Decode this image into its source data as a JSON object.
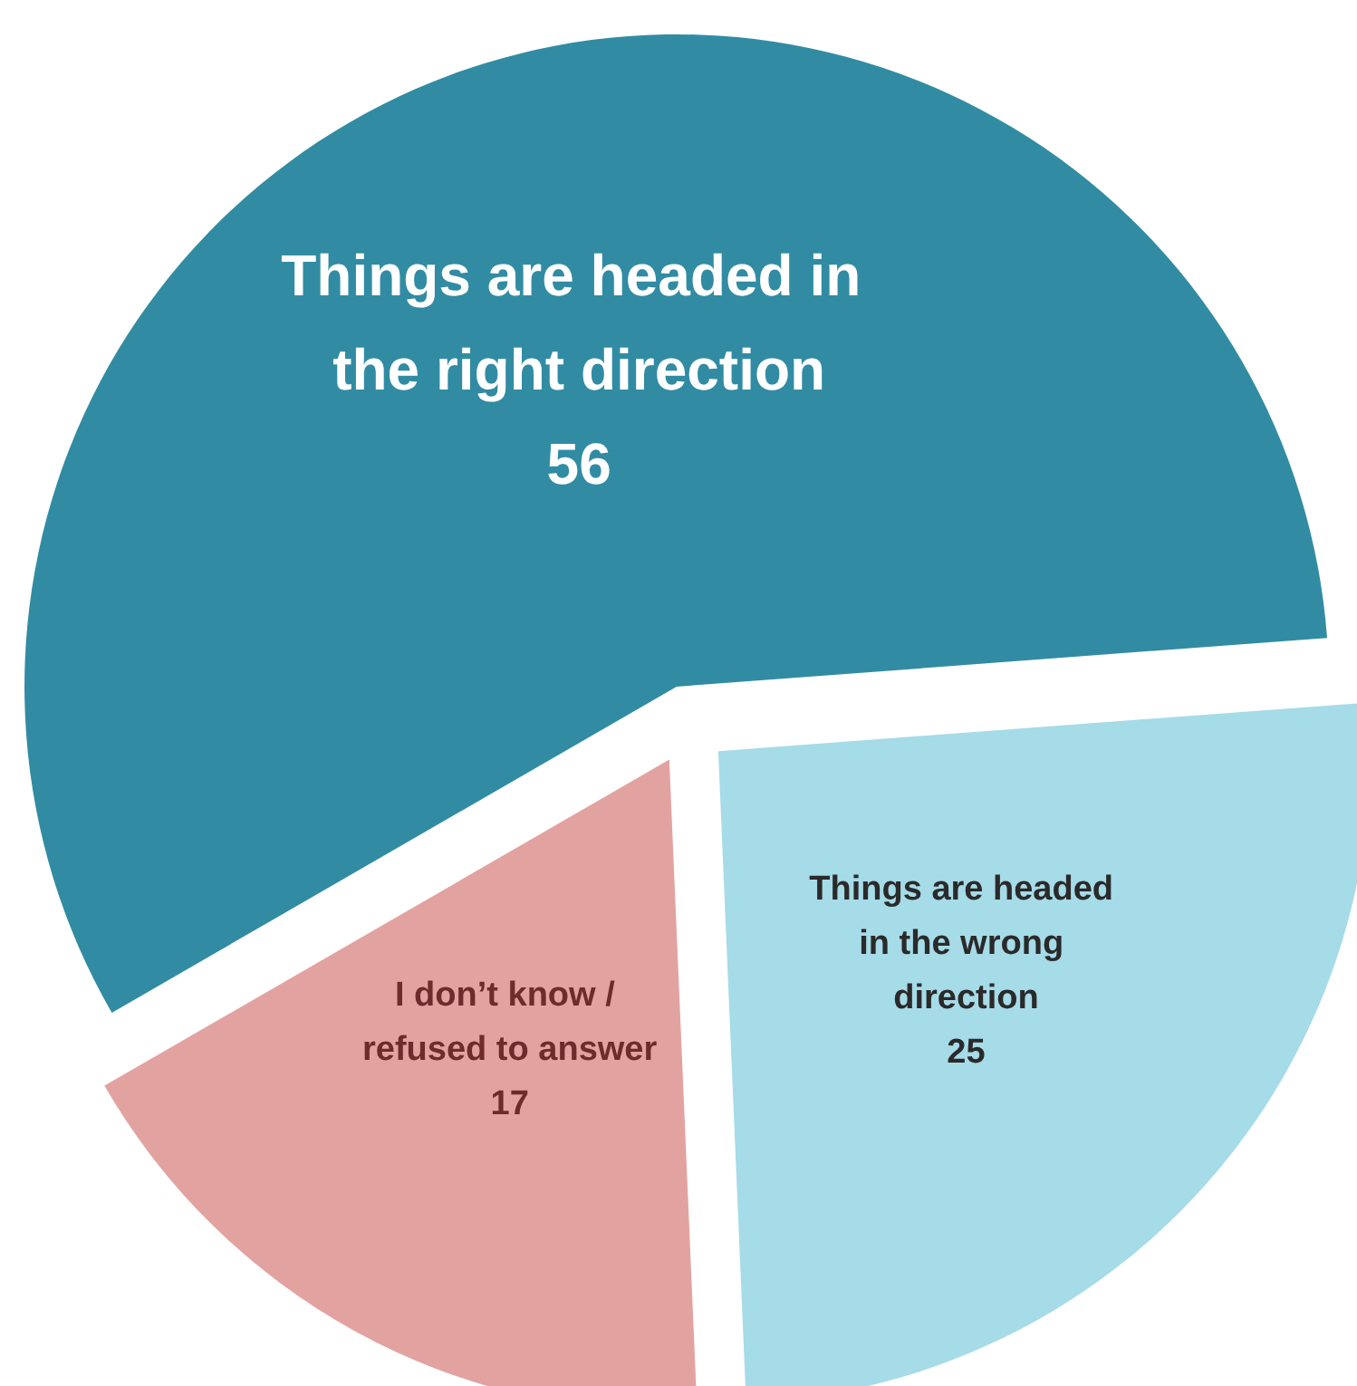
{
  "chart_data": {
    "type": "pie",
    "categories": [
      "Things are headed in the right direction",
      "Things are headed in the wrong direction",
      "I don’t know / refused to answer"
    ],
    "values": [
      56,
      25,
      17
    ],
    "colors": [
      "#318ca3",
      "#a6dbe8",
      "#e2a3a0"
    ],
    "data_labels": true
  }
}
